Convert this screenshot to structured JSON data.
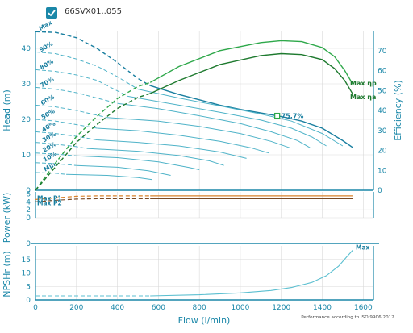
{
  "legend": {
    "label": "66SVX01..055",
    "checked": true
  },
  "footer": "Performance according to ISO 9906:2012",
  "colors": {
    "accent": "#1a87a8",
    "grid": "#d9d9d9",
    "eff_light": "#2ea84a",
    "eff_dark": "#1e7a2f",
    "power_orange": "#d9822b",
    "power_brown": "#7a4a24",
    "npsh": "#5bbfd0"
  },
  "chart_data": [
    {
      "type": "line",
      "name": "head",
      "xlabel": "Flow (l/min)",
      "ylabel": "Head (m)",
      "y2label": "Efficiency (%)",
      "xlim": [
        0,
        1650
      ],
      "ylim": [
        0,
        45
      ],
      "y2lim": [
        0,
        80
      ],
      "xticks": [
        "0",
        "200",
        "400",
        "600",
        "800",
        "1000",
        "1200",
        "1400",
        "1600"
      ],
      "yticks": [
        "0",
        "10",
        "20",
        "30",
        "40"
      ],
      "y2ticks": [
        "0",
        "10",
        "20",
        "30",
        "40",
        "50",
        "60",
        "70"
      ],
      "grid": true,
      "speed_labels": [
        "Max",
        "90%",
        "80%",
        "70%",
        "60%",
        "50%",
        "40%",
        "30%",
        "20%",
        "10%",
        "Min"
      ],
      "head_curves": [
        {
          "name": "Max",
          "x": [
            0,
            100,
            200,
            300,
            400,
            500,
            560
          ],
          "y": [
            44.7,
            44.5,
            43.0,
            40.0,
            36.0,
            31.5,
            29.5
          ],
          "x_solid": [
            560,
            700,
            800,
            900,
            1000,
            1100,
            1200,
            1300,
            1400,
            1500,
            1550
          ],
          "y_solid": [
            29.5,
            27.0,
            25.5,
            24.0,
            22.8,
            21.8,
            20.8,
            19.5,
            17.5,
            14.0,
            12.0
          ]
        },
        {
          "name": "90%",
          "x": [
            0,
            100,
            200,
            300,
            400,
            500
          ],
          "y": [
            39.0,
            38.5,
            37.0,
            35.0,
            32.0,
            28.5
          ],
          "x_solid": [
            500,
            700,
            900,
            1100,
            1250,
            1400,
            1500
          ],
          "y_solid": [
            28.5,
            26.0,
            23.8,
            21.5,
            19.5,
            16.0,
            12.5
          ]
        },
        {
          "name": "80%",
          "x": [
            0,
            100,
            200,
            300,
            450
          ],
          "y": [
            34.0,
            33.5,
            32.5,
            31.0,
            26.5
          ],
          "x_solid": [
            450,
            700,
            900,
            1100,
            1250,
            1350,
            1420
          ],
          "y_solid": [
            26.5,
            24.0,
            22.0,
            19.8,
            17.5,
            15.0,
            12.5
          ]
        },
        {
          "name": "70%",
          "x": [
            0,
            100,
            200,
            300,
            400
          ],
          "y": [
            29.0,
            28.5,
            27.5,
            26.0,
            24.5
          ],
          "x_solid": [
            400,
            600,
            800,
            1000,
            1150,
            1280,
            1340
          ],
          "y_solid": [
            24.5,
            23.0,
            21.0,
            18.8,
            16.5,
            14.0,
            12.0
          ]
        },
        {
          "name": "60%",
          "x": [
            0,
            100,
            200,
            350
          ],
          "y": [
            24.0,
            23.5,
            22.5,
            20.5
          ],
          "x_solid": [
            350,
            600,
            800,
            1000,
            1150,
            1240
          ],
          "y_solid": [
            20.5,
            19.5,
            18.0,
            16.0,
            13.8,
            12.0
          ]
        },
        {
          "name": "50%",
          "x": [
            0,
            100,
            200,
            300
          ],
          "y": [
            20.0,
            19.5,
            18.5,
            17.5
          ],
          "x_solid": [
            300,
            500,
            700,
            900,
            1050,
            1140
          ],
          "y_solid": [
            17.5,
            16.8,
            15.5,
            13.8,
            12.0,
            10.5
          ]
        },
        {
          "name": "40%",
          "x": [
            0,
            100,
            200,
            300
          ],
          "y": [
            16.5,
            16.0,
            15.2,
            14.2
          ],
          "x_solid": [
            300,
            500,
            700,
            900,
            1030
          ],
          "y_solid": [
            14.2,
            13.5,
            12.5,
            10.8,
            9.0
          ]
        },
        {
          "name": "30%",
          "x": [
            0,
            100,
            200,
            250
          ],
          "y": [
            13.5,
            13.0,
            12.3,
            11.8
          ],
          "x_solid": [
            250,
            500,
            700,
            850,
            920
          ],
          "y_solid": [
            11.8,
            11.0,
            9.8,
            8.3,
            7.0
          ]
        },
        {
          "name": "20%",
          "x": [
            0,
            100,
            200
          ],
          "y": [
            10.5,
            10.2,
            9.7
          ],
          "x_solid": [
            200,
            400,
            600,
            750,
            800
          ],
          "y_solid": [
            9.7,
            9.2,
            8.0,
            6.4,
            5.8
          ]
        },
        {
          "name": "10%",
          "x": [
            0,
            100,
            200
          ],
          "y": [
            7.8,
            7.5,
            7.0
          ],
          "x_solid": [
            200,
            400,
            550,
            660
          ],
          "y_solid": [
            7.0,
            6.5,
            5.5,
            4.2
          ]
        },
        {
          "name": "Min",
          "x": [
            0,
            100,
            150
          ],
          "y": [
            5.0,
            4.8,
            4.5
          ],
          "x_solid": [
            150,
            350,
            500,
            570
          ],
          "y_solid": [
            4.5,
            4.2,
            3.6,
            3.0
          ]
        }
      ],
      "efficiency_curves": [
        {
          "name": "Max ηp",
          "x_dashed": [
            0,
            100,
            200,
            300,
            400,
            500,
            560
          ],
          "y_dashed": [
            0,
            14,
            27,
            37,
            46,
            52,
            54
          ],
          "x": [
            560,
            700,
            900,
            1100,
            1200,
            1300,
            1400,
            1460,
            1510,
            1550
          ],
          "y": [
            54,
            62,
            70,
            74,
            75,
            74.5,
            71.5,
            67,
            60,
            53
          ]
        },
        {
          "name": "Max ηa",
          "x_dashed": [
            0,
            100,
            200,
            300,
            400,
            500,
            560
          ],
          "y_dashed": [
            0,
            12,
            24,
            33,
            41,
            46.5,
            48.5
          ],
          "x": [
            560,
            700,
            900,
            1100,
            1200,
            1300,
            1400,
            1460,
            1510,
            1550
          ],
          "y": [
            48.5,
            55,
            63,
            67.5,
            68.5,
            68,
            65.5,
            61,
            55,
            48
          ]
        }
      ],
      "annotations": [
        {
          "label": "75.7%",
          "x": 1180,
          "y": 21.0
        }
      ]
    },
    {
      "type": "line",
      "name": "power",
      "ylabel": "Power (kW)",
      "xlim": [
        0,
        1650
      ],
      "ylim": [
        0,
        6.5
      ],
      "yticks": [
        "0",
        "2",
        "4",
        "6"
      ],
      "series": [
        {
          "name": "Max P1",
          "x_dashed": [
            0,
            100,
            200,
            300,
            560
          ],
          "y_dashed": [
            4.6,
            5.0,
            5.4,
            5.5,
            5.5
          ],
          "x": [
            560,
            1550
          ],
          "y": [
            5.5,
            5.5
          ]
        },
        {
          "name": "Max P2",
          "x_dashed": [
            0,
            100,
            200,
            300,
            560
          ],
          "y_dashed": [
            4.0,
            4.4,
            4.7,
            4.8,
            4.8
          ],
          "x": [
            560,
            1550
          ],
          "y": [
            4.8,
            4.8
          ]
        }
      ]
    },
    {
      "type": "line",
      "name": "npsh",
      "ylabel": "NPSHr (m)",
      "xlabel": "Flow (l/min)",
      "xlim": [
        0,
        1650
      ],
      "ylim": [
        0,
        20
      ],
      "yticks": [
        "0",
        "5",
        "10",
        "15"
      ],
      "series": [
        {
          "name": "Max",
          "x_dashed": [
            0,
            560
          ],
          "y_dashed": [
            1.5,
            1.5
          ],
          "x": [
            560,
            800,
            1000,
            1150,
            1250,
            1350,
            1420,
            1480,
            1520,
            1550
          ],
          "y": [
            1.5,
            1.9,
            2.6,
            3.5,
            4.6,
            6.5,
            9.0,
            12.5,
            16.0,
            18.5
          ]
        }
      ]
    }
  ]
}
